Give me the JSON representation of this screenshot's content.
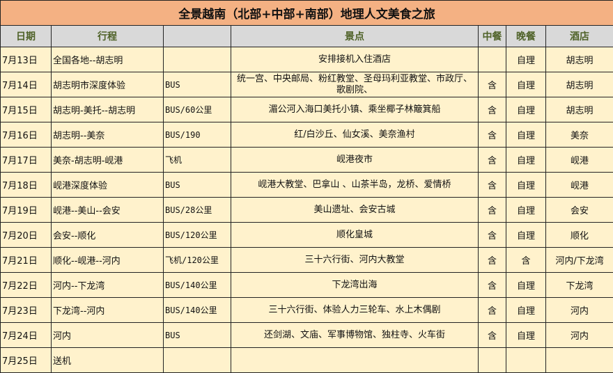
{
  "title": "全景越南（北部+中部+南部）地理人文美食之旅",
  "headers": {
    "date": "日期",
    "route": "行程",
    "transport": "",
    "sights": "景点",
    "lunch": "中餐",
    "dinner": "晚餐",
    "hotel": "酒店"
  },
  "rows": [
    {
      "date": "7月13日",
      "route": "全国各地--胡志明",
      "transport": "",
      "sights": "安排接机入住酒店",
      "lunch": "",
      "dinner": "自理",
      "hotel": "胡志明"
    },
    {
      "date": "7月14日",
      "route": "胡志明市深度体验",
      "transport": "BUS",
      "sights": "统一宫、中央邮局、粉红教堂、圣母玛利亚教堂、市政厅、歌剧院、",
      "lunch": "含",
      "dinner": "自理",
      "hotel": "胡志明"
    },
    {
      "date": "7月15日",
      "route": "胡志明-美托--胡志明",
      "transport": "BUS/60公里",
      "sights": "湄公河入海口美托小镇、乘坐椰子林簸箕船",
      "lunch": "含",
      "dinner": "自理",
      "hotel": "胡志明"
    },
    {
      "date": "7月16日",
      "route": "胡志明--美奈",
      "transport": "BUS/190",
      "sights": "红/白沙丘、仙女溪、美奈渔村",
      "lunch": "含",
      "dinner": "自理",
      "hotel": "美奈"
    },
    {
      "date": "7月17日",
      "route": "美奈-胡志明-岘港",
      "transport": "飞机",
      "sights": "岘港夜市",
      "lunch": "含",
      "dinner": "自理",
      "hotel": "岘港"
    },
    {
      "date": "7月18日",
      "route": "岘港深度体验",
      "transport": "BUS",
      "sights": "岘港大教堂、巴拿山 、山茶半岛，龙桥、爱情桥",
      "lunch": "含",
      "dinner": "自理",
      "hotel": "岘港"
    },
    {
      "date": "7月19日",
      "route": "岘港--美山--会安",
      "transport": "BUS/28公里",
      "sights": "美山遗址、会安古城",
      "lunch": "含",
      "dinner": "自理",
      "hotel": "会安"
    },
    {
      "date": "7月20日",
      "route": "会安--顺化",
      "transport": "BUS/120公里",
      "sights": "顺化皇城",
      "lunch": "含",
      "dinner": "自理",
      "hotel": "顺化"
    },
    {
      "date": "7月21日",
      "route": "顺化--岘港--河内",
      "transport": "飞机/120公里",
      "sights": "三十六行街、河内大教堂",
      "lunch": "含",
      "dinner": "含",
      "hotel": "河内/下龙湾"
    },
    {
      "date": "7月22日",
      "route": "河内--下龙湾",
      "transport": "BUS/140公里",
      "sights": "下龙湾出海",
      "lunch": "含",
      "dinner": "自理",
      "hotel": "下龙湾"
    },
    {
      "date": "7月23日",
      "route": "下龙湾--河内",
      "transport": "BUS/140公里",
      "sights": "三十六行街、体验人力三轮车、水上木偶剧",
      "lunch": "含",
      "dinner": "自理",
      "hotel": "河内"
    },
    {
      "date": "7月24日",
      "route": "河内",
      "transport": "BUS",
      "sights": "还剑湖、文庙、军事博物馆、独柱寺、火车街",
      "lunch": "含",
      "dinner": "自理",
      "hotel": "河内"
    },
    {
      "date": "7月25日",
      "route": "送机",
      "transport": "",
      "sights": "",
      "lunch": "",
      "dinner": "",
      "hotel": ""
    }
  ]
}
